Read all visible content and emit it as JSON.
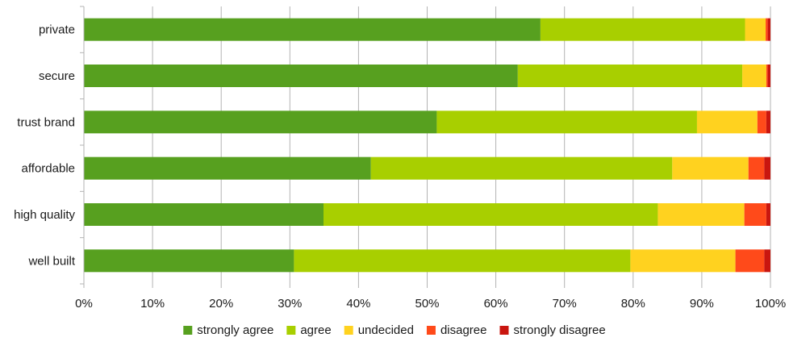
{
  "chart_data": {
    "type": "bar",
    "orientation": "horizontal",
    "stacked": true,
    "percent_stacked": true,
    "categories": [
      "private",
      "secure",
      "trust brand",
      "affordable",
      "high quality",
      "well built"
    ],
    "xlim": [
      0,
      100
    ],
    "x_ticks": [
      "0%",
      "10%",
      "20%",
      "30%",
      "40%",
      "50%",
      "60%",
      "70%",
      "80%",
      "90%",
      "100%"
    ],
    "grid": "vertical",
    "legend_position": "bottom",
    "series": [
      {
        "name": "strongly agree",
        "color": "#57a01f",
        "values": [
          66.5,
          63.2,
          51.4,
          41.8,
          34.9,
          30.6
        ]
      },
      {
        "name": "agree",
        "color": "#a8cf00",
        "values": [
          29.8,
          32.7,
          37.9,
          43.9,
          48.7,
          49.0
        ]
      },
      {
        "name": "undecided",
        "color": "#ffd21f",
        "values": [
          3.0,
          3.5,
          8.8,
          11.1,
          12.6,
          15.3
        ]
      },
      {
        "name": "disagree",
        "color": "#ff4a1a",
        "values": [
          0.3,
          0.2,
          1.3,
          2.3,
          3.2,
          4.2
        ]
      },
      {
        "name": "strongly disagree",
        "color": "#c9160f",
        "values": [
          0.4,
          0.4,
          0.6,
          0.9,
          0.6,
          0.9
        ]
      }
    ]
  }
}
